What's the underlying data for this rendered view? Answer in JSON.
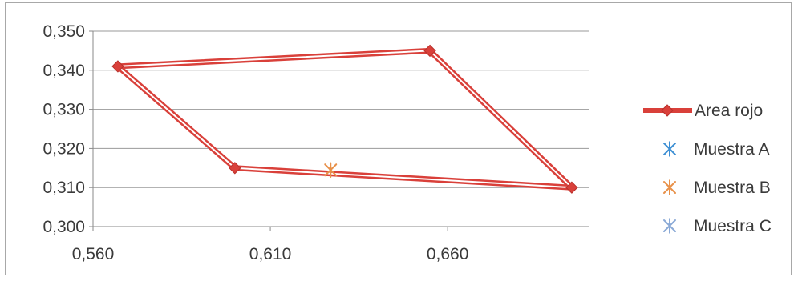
{
  "chart_data": {
    "type": "scatter",
    "title": "",
    "xlabel": "",
    "ylabel": "",
    "xlim": [
      0.56,
      0.7
    ],
    "ylim": [
      0.3,
      0.35
    ],
    "x_ticks": [
      "0,560",
      "0,610",
      "0,660"
    ],
    "y_ticks": [
      "0,350",
      "0,340",
      "0,330",
      "0,320",
      "0,310",
      "0,300"
    ],
    "grid": "horizontal",
    "legend_position": "right",
    "series": [
      {
        "name": "Area rojo",
        "kind": "line-markers",
        "marker": "diamond",
        "color": "#d9403a",
        "points": [
          [
            0.567,
            0.341
          ],
          [
            0.655,
            0.345
          ],
          [
            0.695,
            0.31
          ],
          [
            0.6,
            0.315
          ],
          [
            0.567,
            0.341
          ]
        ]
      },
      {
        "name": "Muestra A",
        "kind": "marker",
        "marker": "asterisk",
        "color": "#3e8fd4",
        "points": []
      },
      {
        "name": "Muestra B",
        "kind": "marker",
        "marker": "asterisk",
        "color": "#e8914a",
        "points": [
          [
            0.627,
            0.3145
          ]
        ]
      },
      {
        "name": "Muestra C",
        "kind": "marker",
        "marker": "asterisk",
        "color": "#8aa9d6",
        "points": []
      }
    ]
  }
}
